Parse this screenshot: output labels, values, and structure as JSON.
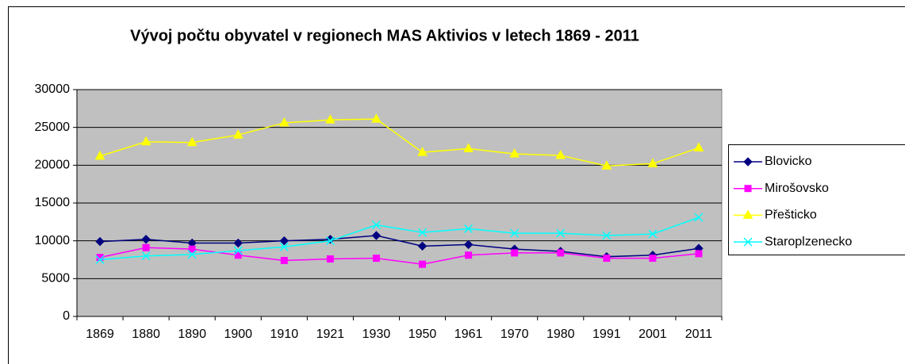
{
  "chart_data": {
    "type": "line",
    "title": "Vývoj počtu obyvatel v regionech MAS Aktivios v letech 1869 - 2011",
    "categories": [
      "1869",
      "1880",
      "1890",
      "1900",
      "1910",
      "1921",
      "1930",
      "1950",
      "1961",
      "1970",
      "1980",
      "1991",
      "2001",
      "2011"
    ],
    "series": [
      {
        "name": "Blovicko",
        "color": "#000080",
        "marker": "diamond",
        "values": [
          9900,
          10200,
          9700,
          9700,
          10000,
          10200,
          10700,
          9300,
          9500,
          8900,
          8600,
          7900,
          8100,
          9000
        ]
      },
      {
        "name": "Mirošovsko",
        "color": "#ff00ff",
        "marker": "square",
        "values": [
          7800,
          9100,
          8900,
          8100,
          7400,
          7600,
          7700,
          6900,
          8100,
          8400,
          8400,
          7700,
          7700,
          8300
        ]
      },
      {
        "name": "Přešticko",
        "color": "#ffff00",
        "marker": "triangle",
        "values": [
          21200,
          23100,
          23000,
          24000,
          25600,
          26000,
          26100,
          21700,
          22200,
          21500,
          21300,
          19900,
          20200,
          22300
        ]
      },
      {
        "name": "Staroplzenecko",
        "color": "#00ffff",
        "marker": "x",
        "values": [
          7500,
          8000,
          8200,
          8700,
          9200,
          10000,
          12100,
          11100,
          11600,
          11000,
          11000,
          10700,
          10900,
          13100
        ]
      }
    ],
    "ylim": [
      0,
      30000
    ],
    "yticks": [
      0,
      5000,
      10000,
      15000,
      20000,
      25000,
      30000
    ],
    "grid": true,
    "legend": "right"
  }
}
